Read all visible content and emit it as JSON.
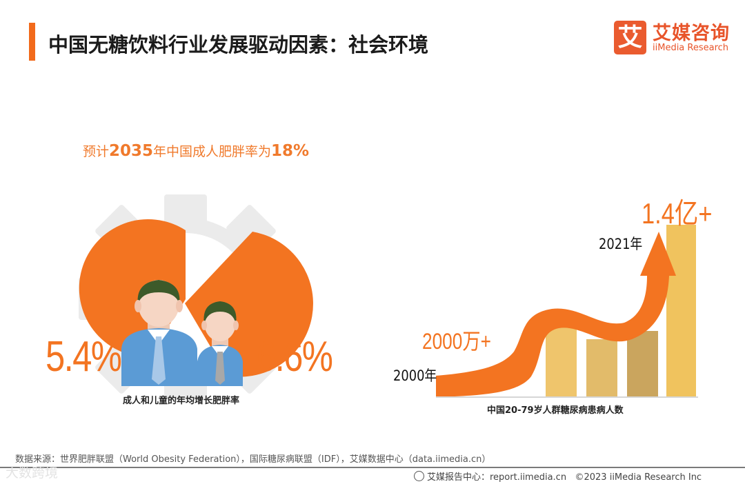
{
  "header": {
    "title": "中国无糖饮料行业发展驱动因素：社会环境",
    "logo_mark": "艾",
    "logo_cn": "艾媒咨询",
    "logo_en": "iiMedia Research"
  },
  "obesity": {
    "title_prefix": "预计",
    "title_year": "2035",
    "title_mid": "年中国成人肥胖率为",
    "title_value": "18%",
    "adult_rate": "5.4%",
    "child_rate": "6.6%",
    "caption": "成人和儿童的年均增长肥胖率"
  },
  "diabetes": {
    "start_year": "2000年",
    "end_year": "2021年",
    "start_value": "2000万+",
    "end_value": "1.4亿+",
    "caption": "中国20-79岁人群糖尿病患病人数"
  },
  "colors": {
    "accent": "#f37421",
    "gear": "#ebebeb",
    "shirt": "#5b9bd5",
    "hair": "#3d5a2a",
    "bars": [
      "#efc56c",
      "#e2bb6a",
      "#caa55e",
      "#f0c35e"
    ]
  },
  "footer": {
    "source": "数据来源：世界肥胖联盟（World Obesity Federation），国际糖尿病联盟（IDF），艾媒数据中心（data.iimedia.cn）",
    "center": "艾媒报告中心：report.iimedia.cn",
    "copyright": "©2023  iiMedia Research  Inc",
    "watermark": "大数跨境"
  }
}
